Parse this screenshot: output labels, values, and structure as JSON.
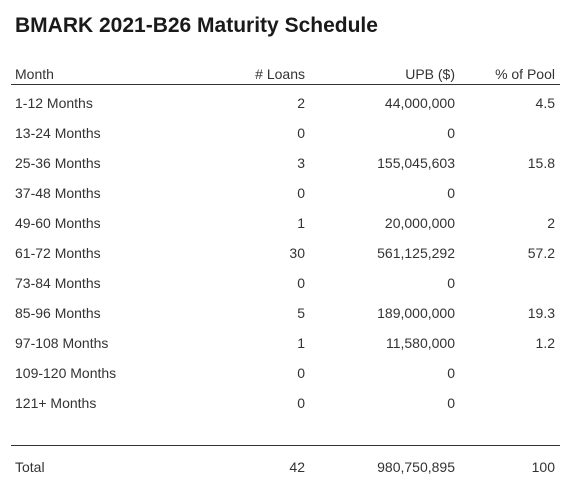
{
  "title": "BMARK 2021-B26 Maturity Schedule",
  "columns": {
    "month": "Month",
    "loans": "# Loans",
    "upb": "UPB ($)",
    "pct": "% of Pool"
  },
  "rows": [
    {
      "month": "1-12 Months",
      "loans": "2",
      "upb": "44,000,000",
      "pct": "4.5"
    },
    {
      "month": "13-24 Months",
      "loans": "0",
      "upb": "0",
      "pct": ""
    },
    {
      "month": "25-36 Months",
      "loans": "3",
      "upb": "155,045,603",
      "pct": "15.8"
    },
    {
      "month": "37-48 Months",
      "loans": "0",
      "upb": "0",
      "pct": ""
    },
    {
      "month": "49-60 Months",
      "loans": "1",
      "upb": "20,000,000",
      "pct": "2"
    },
    {
      "month": "61-72 Months",
      "loans": "30",
      "upb": "561,125,292",
      "pct": "57.2"
    },
    {
      "month": "73-84 Months",
      "loans": "0",
      "upb": "0",
      "pct": ""
    },
    {
      "month": "85-96 Months",
      "loans": "5",
      "upb": "189,000,000",
      "pct": "19.3"
    },
    {
      "month": "97-108 Months",
      "loans": "1",
      "upb": "11,580,000",
      "pct": "1.2"
    },
    {
      "month": "109-120 Months",
      "loans": "0",
      "upb": "0",
      "pct": ""
    },
    {
      "month": "121+ Months",
      "loans": "0",
      "upb": "0",
      "pct": ""
    }
  ],
  "total": {
    "label": "Total",
    "loans": "42",
    "upb": "980,750,895",
    "pct": "100"
  }
}
